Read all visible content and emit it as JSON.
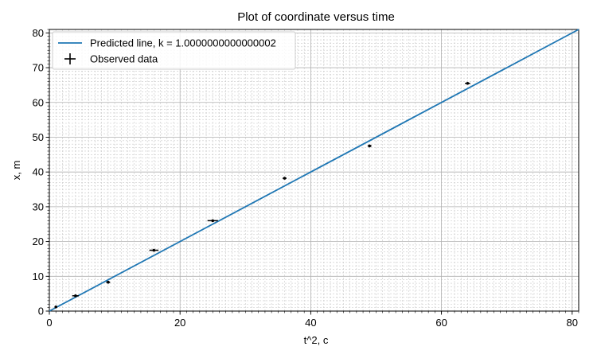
{
  "chart_data": {
    "type": "line",
    "title": "Plot of coordinate versus time",
    "xlabel": "t^2, c",
    "ylabel": "x, m",
    "xlim": [
      0,
      81
    ],
    "ylim": [
      0,
      81
    ],
    "xticks": [
      0,
      20,
      40,
      60,
      80
    ],
    "yticks": [
      0,
      10,
      20,
      30,
      40,
      50,
      60,
      70,
      80
    ],
    "grid": true,
    "minor_grid": true,
    "legend_position": "top-left",
    "series": [
      {
        "name": "Predicted line, k = 1.0000000000000002",
        "kind": "line",
        "color": "#1f77b4",
        "x": [
          0,
          81
        ],
        "y": [
          0,
          81
        ]
      },
      {
        "name": "Observed data",
        "kind": "errorbar",
        "color": "#000000",
        "x": [
          1,
          4,
          9,
          16,
          25,
          36,
          49,
          64
        ],
        "y": [
          1.2,
          4.4,
          8.3,
          17.5,
          26.0,
          38.2,
          47.5,
          65.5
        ],
        "xerr": [
          0.2,
          0.5,
          0.3,
          0.7,
          0.8,
          0.3,
          0.3,
          0.4
        ],
        "yerr": [
          0.2,
          0.2,
          0.2,
          0.2,
          0.2,
          0.2,
          0.2,
          0.2
        ]
      }
    ]
  }
}
